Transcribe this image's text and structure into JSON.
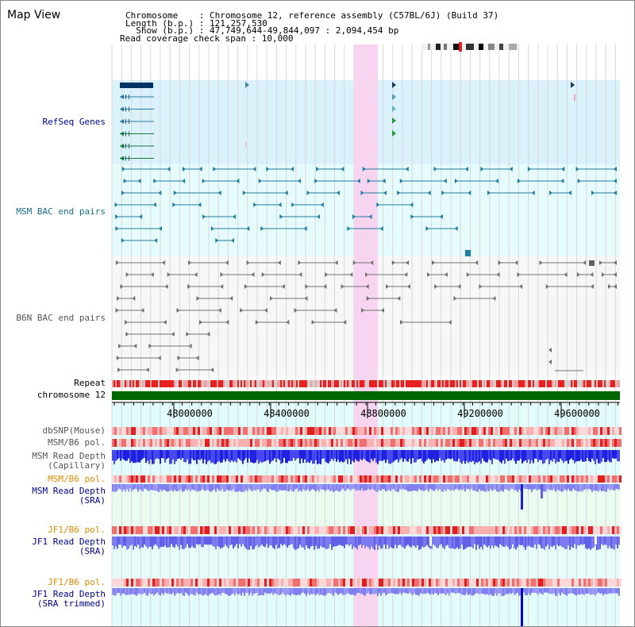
{
  "window": {
    "title": "Map View"
  },
  "header": {
    "chromosome": "Chromosome    : Chromosome 12, reference assembly (C57BL/6J) (Build 37)",
    "length": "Length (b.p.) : 121,257,530",
    "show": "  Show (b.p.) : 47,749,644-49,844,097 : 2,094,454 bp",
    "coverage": "Read coverage check span : 10,000"
  },
  "tracks": {
    "refseq": "RefSeq Genes",
    "msm_bac": "MSM BAC end pairs",
    "b6n_bac": "B6N BAC end pairs",
    "repeat": "Repeat",
    "chromosome": "chromosome 12",
    "dbsnp": "dbSNP(Mouse)",
    "msm_b6_pol_1": "MSM/B6 pol.",
    "msm_read_depth_cap_1": "MSM Read Depth",
    "msm_read_depth_cap_2": "(Capillary)",
    "msm_b6_pol_2": "MSM/B6 pol.",
    "msm_read_depth_sra_1": "MSM Read Depth",
    "msm_read_depth_sra_2": "(SRA)",
    "jf1_b6_pol_1": "JF1/B6 pol.",
    "jf1_read_depth_sra_1": "JF1 Read Depth",
    "jf1_read_depth_sra_2": "(SRA)",
    "jf1_b6_pol_2": "JF1/B6 pol.",
    "jf1_read_depth_trim_1": "JF1 Read Depth",
    "jf1_read_depth_trim_2": "(SRA trimmed)"
  },
  "axis": {
    "ticks": [
      "48000000",
      "48400000",
      "48800000",
      "49200000",
      "49600000"
    ]
  },
  "colors": {
    "navy_label": "#00008b",
    "teal_label": "#1a6d8a",
    "gray_label": "#555555",
    "orange_label": "#e08a00",
    "highlight": "#f7d4f0",
    "chromosome_green": "#006600",
    "depth_blue": "#6f6ff0"
  }
}
